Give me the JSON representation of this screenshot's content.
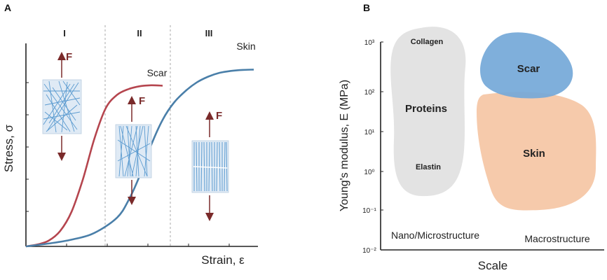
{
  "chart_data": [
    {
      "panel": "A",
      "type": "line",
      "title": "",
      "xlabel": "Strain, ε",
      "ylabel": "Stress, σ",
      "regions": [
        "I",
        "II",
        "III"
      ],
      "force_label": "F",
      "xlim": [
        0,
        10
      ],
      "ylim": [
        0,
        10
      ],
      "series": [
        {
          "name": "Scar",
          "color": "#b5454e",
          "x": [
            0,
            0.5,
            1.0,
            1.5,
            2.0,
            2.5,
            3.0,
            3.5,
            4.0,
            4.5,
            5.0,
            5.5,
            6.0
          ],
          "y": [
            0,
            0.1,
            0.3,
            0.8,
            1.8,
            3.5,
            5.6,
            7.2,
            7.9,
            8.2,
            8.35,
            8.4,
            8.38
          ]
        },
        {
          "name": "Skin",
          "color": "#4a7fa9",
          "x": [
            0,
            1,
            2,
            3,
            4,
            4.5,
            5,
            5.5,
            6,
            6.5,
            7,
            7.5,
            8,
            8.5,
            9,
            9.5,
            10
          ],
          "y": [
            0,
            0.15,
            0.35,
            0.7,
            1.5,
            2.4,
            3.7,
            5.3,
            6.6,
            7.5,
            8.1,
            8.55,
            8.85,
            9.05,
            9.15,
            9.2,
            9.22
          ]
        }
      ],
      "region_boundaries_x": [
        3.4,
        6.4
      ]
    },
    {
      "panel": "B",
      "type": "scatter",
      "xlabel": "Scale",
      "ylabel": "Young's modulus, E (MPa)",
      "y_scale": "log",
      "y_ticks": [
        "10³",
        "10²",
        "10¹",
        "10⁰",
        "10⁻¹",
        "10⁻²"
      ],
      "x_categories": [
        "Nano/Microstructure",
        "Macrostructure"
      ],
      "regions": [
        {
          "name": "Proteins",
          "color": "#e3e3e3",
          "sublabels": [
            "Collagen",
            "Elastin"
          ]
        },
        {
          "name": "Scar",
          "color": "#74a8d8"
        },
        {
          "name": "Skin",
          "color": "#f5c7a6"
        }
      ]
    }
  ],
  "panels": {
    "a_label": "A",
    "b_label": "B",
    "a_curve_labels": {
      "scar": "Scar",
      "skin": "Skin"
    },
    "b_region_labels": {
      "proteins": "Proteins",
      "collagen": "Collagen",
      "elastin": "Elastin",
      "scar": "Scar",
      "skin": "Skin"
    }
  },
  "colors": {
    "arrow": "#7a2a2a",
    "fibre": "#5b9bd0",
    "fibre_bg": "#dfeaf5",
    "axis": "#222222"
  }
}
